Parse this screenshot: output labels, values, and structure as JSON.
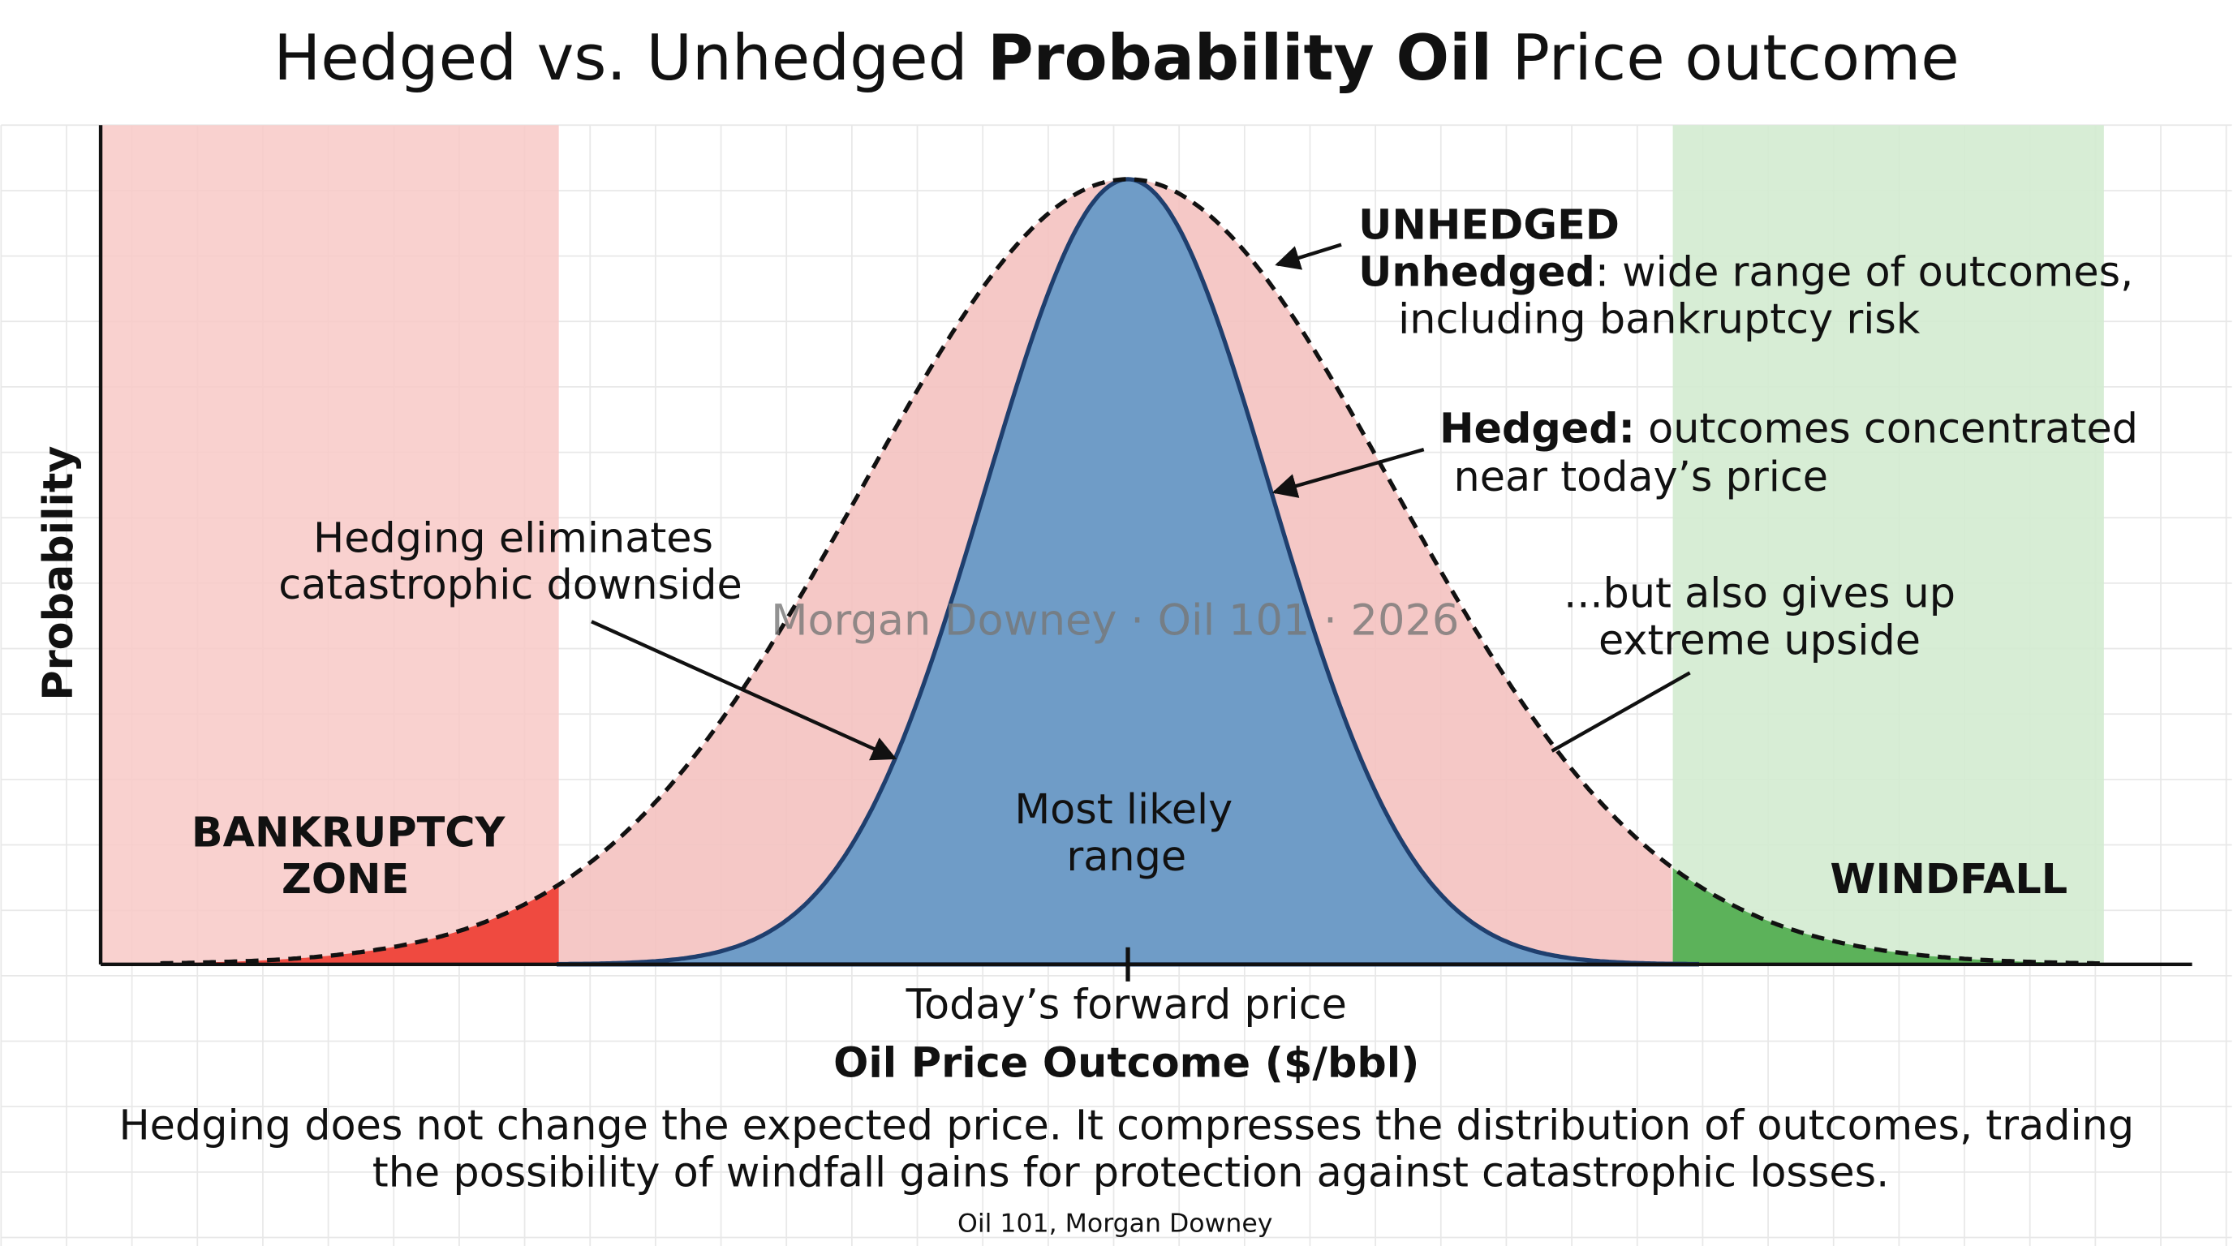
{
  "title": {
    "prefix": "Hedged vs. Unhedged",
    "bold": "Probability Oil",
    "suffix": "Price outcome"
  },
  "y_axis_label": "Probability",
  "x_axis_label": "Oil Price Outcome ($/bbl)",
  "x_tick_label": "Today’s forward price",
  "annotations": {
    "unhedged": {
      "heading": "UNHEDGED",
      "bold": "Unhedged",
      "line1": ": wide range of outcomes,",
      "line2": "including bankruptcy risk"
    },
    "hedged": {
      "bold": "Hedged:",
      "line1": " outcomes concentrated",
      "line2": "near today’s price"
    },
    "downside": {
      "line1": "Hedging eliminates",
      "line2": "catastrophic downside"
    },
    "upside": {
      "line1": "...but also gives up",
      "line2": "extreme upside"
    },
    "bankruptcy": {
      "line1": "BANKRUPTCY",
      "line2": "ZONE"
    },
    "likely": {
      "line1": "Most likely",
      "line2": "range"
    },
    "windfall": "WINDFALL"
  },
  "watermark": "Morgan Downey · Oil 101 · 2026",
  "caption": {
    "line1": "Hedging does not change the expected price. It compresses the distribution of outcomes, trading",
    "line2": "the possibility of windfall gains for protection against catastrophic losses."
  },
  "source": "Oil 101, Morgan Downey"
}
